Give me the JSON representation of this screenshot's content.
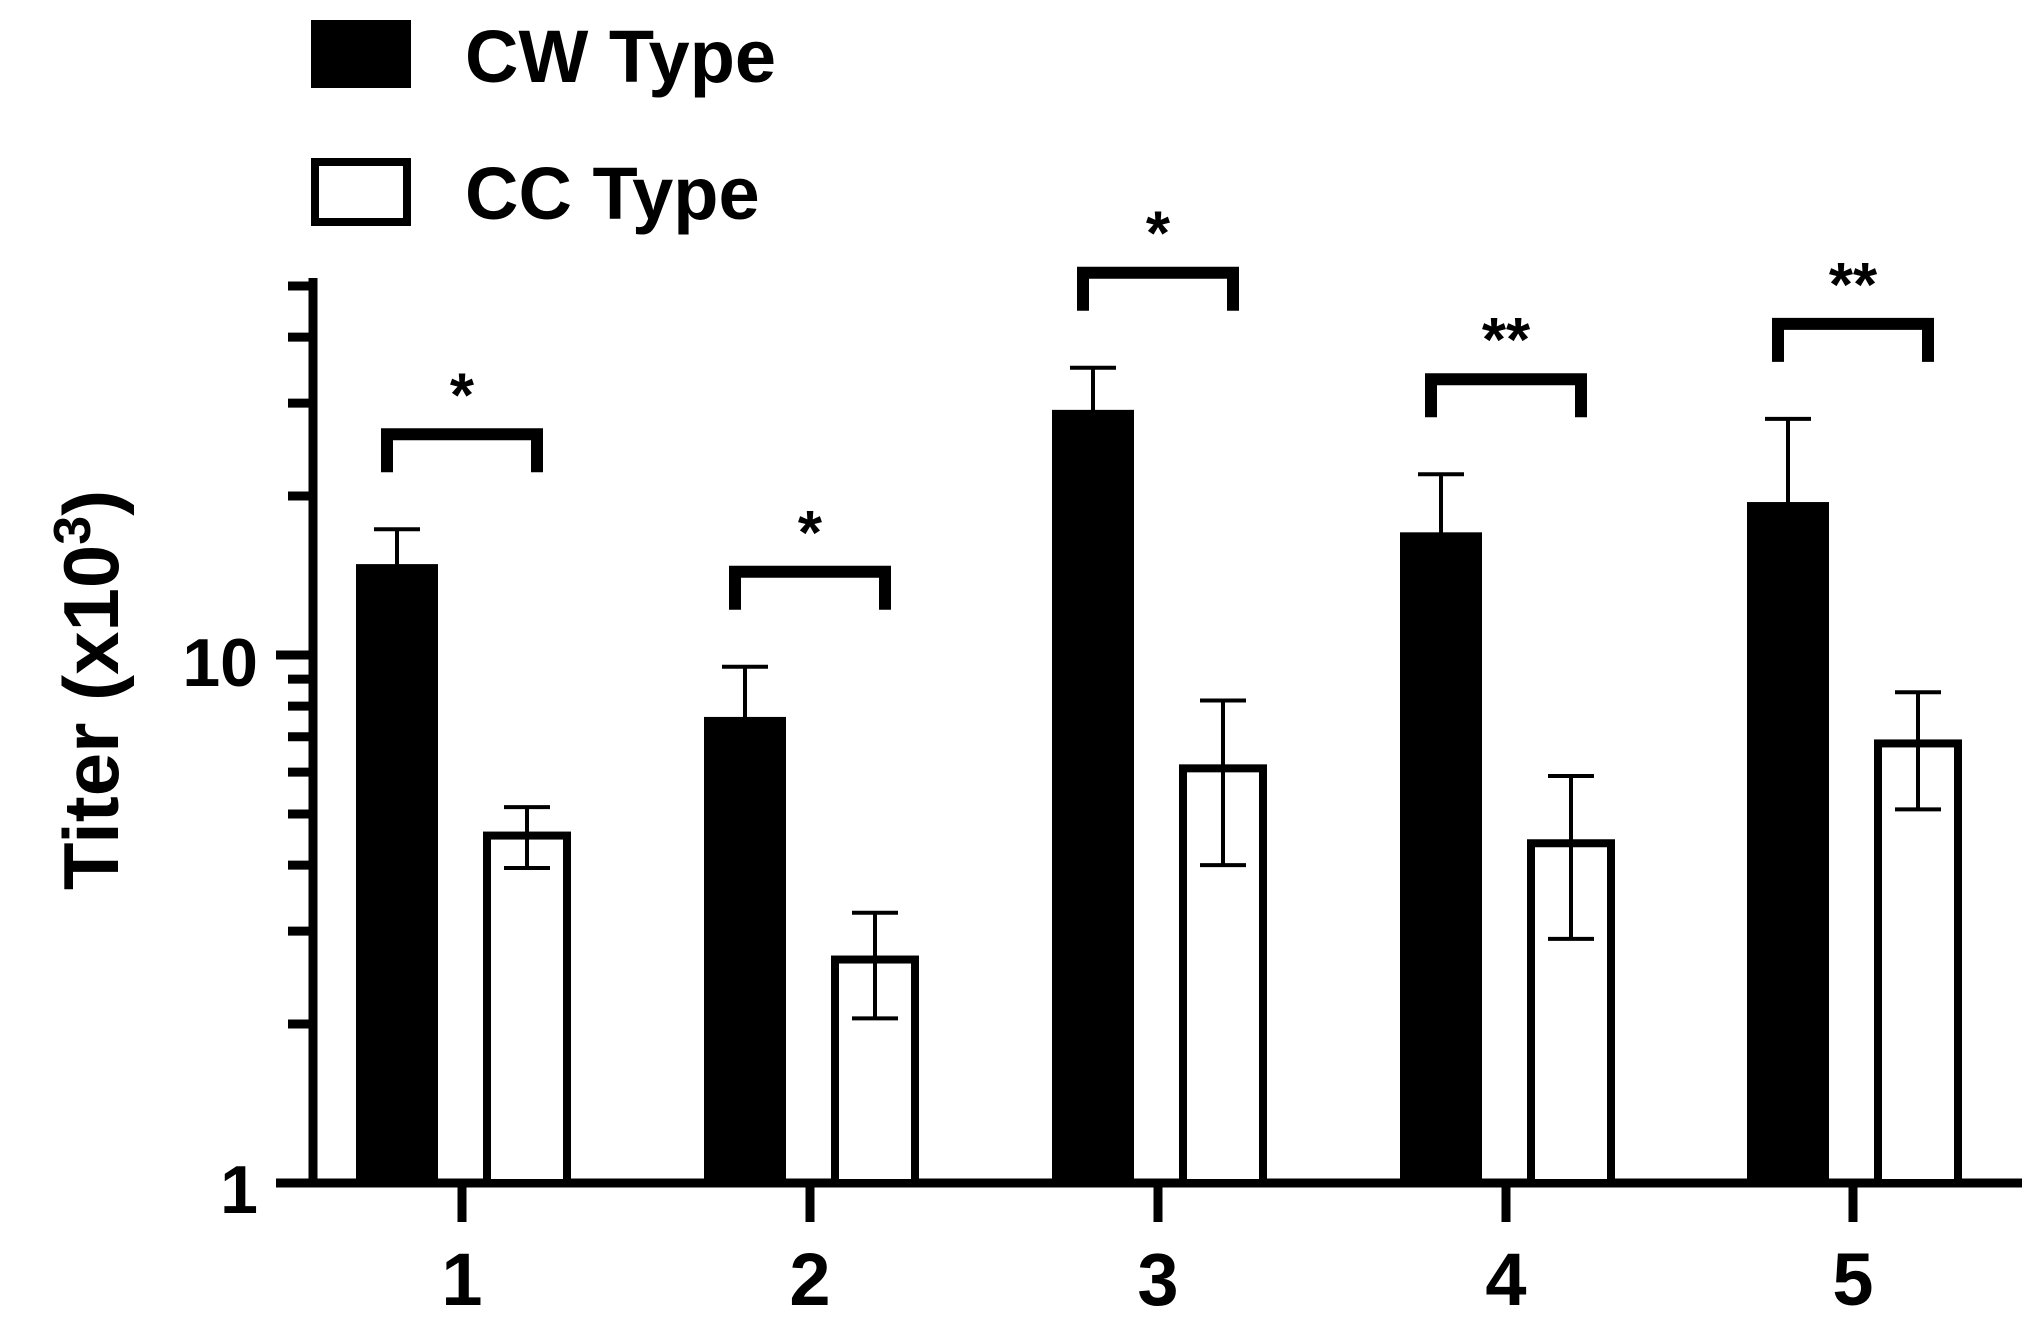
{
  "chart_data": {
    "type": "bar",
    "title": "",
    "xlabel": "",
    "ylabel": "Titer (x10",
    "ylabel_superscript": "3",
    "ylabel_suffix": ")",
    "yscale": "log",
    "ylim": [
      1,
      50
    ],
    "ytick_labels": [
      "1",
      "10"
    ],
    "categories": [
      "1",
      "2",
      "3",
      "4",
      "5"
    ],
    "series": [
      {
        "name": "CW Type",
        "fill": "#000000",
        "values": [
          14.8,
          7.6,
          29.0,
          17.0,
          19.4
        ],
        "errors": [
          2.5,
          1.9,
          6.0,
          5.0,
          8.6
        ]
      },
      {
        "name": "CC Type",
        "fill": "#ffffff",
        "values": [
          4.55,
          2.65,
          6.1,
          4.4,
          6.8
        ],
        "errors": [
          0.6,
          0.6,
          2.1,
          1.5,
          1.7
        ]
      }
    ],
    "significance": [
      "*",
      "*",
      "*",
      "**",
      "**"
    ],
    "legend": {
      "placement": "top-left"
    }
  }
}
